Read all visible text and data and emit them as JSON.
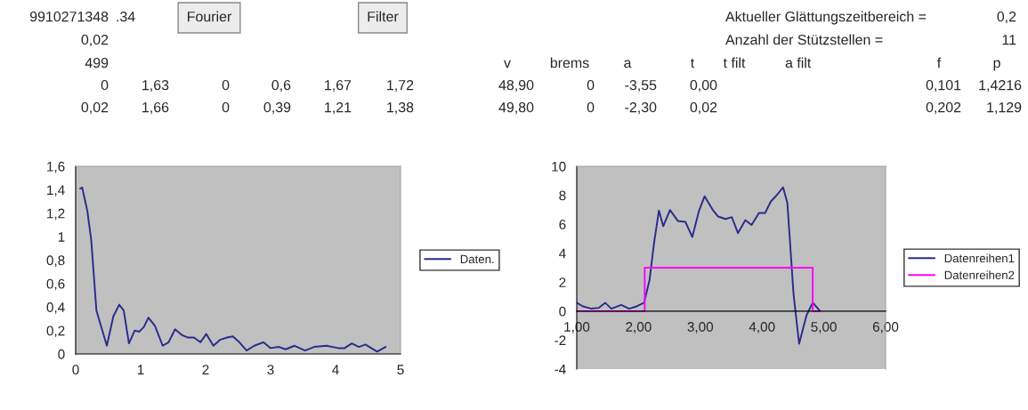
{
  "chart_data": [
    {
      "type": "other",
      "annotations": [
        "9910271348",
        ".34",
        "Fourier",
        "Filter",
        "Aktueller Glättungszeitbereich =",
        "0,2",
        "0,02",
        "Anzahl der Stützstellen =",
        "11",
        "499",
        "v",
        "brems",
        "a",
        "t",
        "t filt",
        "a filt",
        "f",
        "p",
        "0",
        "1,63",
        "0",
        "0,6",
        "1,67",
        "1,72",
        "48,90",
        "0",
        "-3,55",
        "0,00",
        "0,101",
        "1,4216",
        "0,02",
        "1,66",
        "0",
        "0,39",
        "1,21",
        "1,38",
        "49,80",
        "0",
        "-2,30",
        "0,02",
        "0,202",
        "1,129"
      ]
    },
    {
      "type": "line",
      "xlim": [
        0,
        5
      ],
      "ylim": [
        0,
        1.6
      ],
      "xticks": [
        0,
        1,
        2,
        3,
        4,
        5
      ],
      "yticks": [
        0,
        {
          "value": 0.2,
          "label": "0,2"
        },
        {
          "value": 0.4,
          "label": "0,4"
        },
        {
          "value": 0.6,
          "label": "0,6"
        },
        {
          "value": 0.8,
          "label": "0,8"
        },
        1,
        {
          "value": 1.2,
          "label": "1,2"
        },
        {
          "value": 1.4,
          "label": "1,4"
        },
        {
          "value": 1.6,
          "label": "1,6"
        }
      ],
      "grid": false,
      "legend": "right",
      "series": [
        {
          "name": "Daten.",
          "color": "#2b2b8c",
          "x": [
            0.07,
            0.1,
            0.18,
            0.24,
            0.32,
            0.4,
            0.48,
            0.58,
            0.67,
            0.74,
            0.82,
            0.91,
            0.98,
            1.05,
            1.12,
            1.22,
            1.34,
            1.43,
            1.53,
            1.64,
            1.73,
            1.82,
            1.92,
            2.01,
            2.12,
            2.22,
            2.33,
            2.42,
            2.52,
            2.63,
            2.75,
            2.89,
            3.0,
            3.13,
            3.23,
            3.37,
            3.53,
            3.67,
            3.86,
            4.04,
            4.14,
            4.25,
            4.36,
            4.46,
            4.55,
            4.64,
            4.77
          ],
          "values": [
            1.41,
            1.42,
            1.22,
            0.97,
            0.37,
            0.22,
            0.07,
            0.32,
            0.42,
            0.37,
            0.09,
            0.2,
            0.19,
            0.23,
            0.31,
            0.24,
            0.07,
            0.1,
            0.21,
            0.16,
            0.14,
            0.14,
            0.1,
            0.17,
            0.07,
            0.12,
            0.14,
            0.15,
            0.1,
            0.03,
            0.07,
            0.1,
            0.05,
            0.06,
            0.04,
            0.07,
            0.03,
            0.06,
            0.07,
            0.05,
            0.05,
            0.09,
            0.06,
            0.08,
            0.05,
            0.02,
            0.06
          ]
        }
      ]
    },
    {
      "type": "line",
      "xlim": [
        1,
        6
      ],
      "ylim": [
        -4,
        10
      ],
      "xticks": [
        {
          "value": 1,
          "label": "1,00"
        },
        {
          "value": 2,
          "label": "2,00"
        },
        {
          "value": 3,
          "label": "3,00"
        },
        {
          "value": 4,
          "label": "4,00"
        },
        {
          "value": 5,
          "label": "5,00"
        },
        {
          "value": 6,
          "label": "6,00"
        }
      ],
      "yticks": [
        -4,
        -2,
        0,
        2,
        4,
        6,
        8,
        10
      ],
      "grid": false,
      "legend": "right",
      "series": [
        {
          "name": "Datenreihen1",
          "color": "#2b2b8c",
          "x": [
            1.0,
            1.1,
            1.24,
            1.36,
            1.46,
            1.56,
            1.72,
            1.85,
            1.97,
            2.09,
            2.18,
            2.25,
            2.33,
            2.4,
            2.51,
            2.64,
            2.76,
            2.87,
            2.98,
            3.07,
            3.2,
            3.29,
            3.41,
            3.51,
            3.61,
            3.73,
            3.83,
            3.95,
            4.05,
            4.14,
            4.24,
            4.34,
            4.41,
            4.51,
            4.6,
            4.72,
            4.82,
            4.94
          ],
          "values": [
            0.58,
            0.33,
            0.17,
            0.23,
            0.58,
            0.17,
            0.43,
            0.17,
            0.33,
            0.58,
            2.19,
            4.67,
            6.94,
            5.87,
            6.98,
            6.22,
            6.16,
            5.12,
            6.94,
            7.93,
            7.0,
            6.53,
            6.36,
            6.49,
            5.39,
            6.28,
            5.95,
            6.78,
            6.78,
            7.56,
            8.02,
            8.55,
            7.46,
            1.16,
            -2.25,
            -0.29,
            0.6,
            0
          ]
        },
        {
          "name": "Datenreihen2",
          "color": "#ff00ff",
          "x": [
            1.0,
            2.1,
            2.1,
            4.82,
            4.82,
            4.94
          ],
          "values": [
            0,
            0,
            3,
            3,
            0,
            0
          ]
        }
      ]
    }
  ]
}
